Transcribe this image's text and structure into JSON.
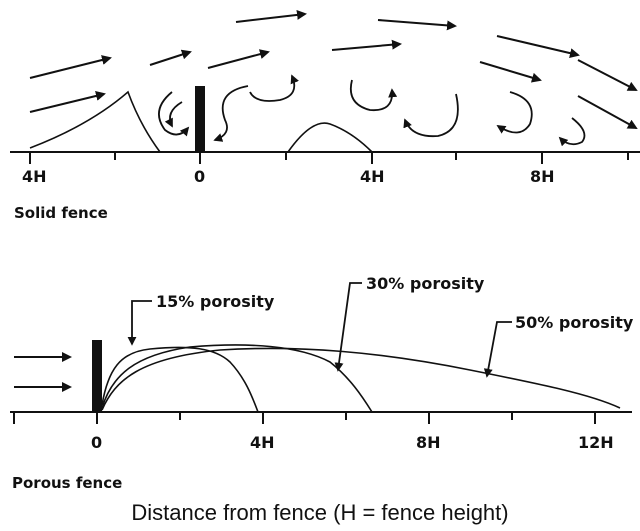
{
  "solid_panel": {
    "label": "Solid fence",
    "tick_labels": [
      "4H",
      "0",
      "4H",
      "8H"
    ]
  },
  "porous_panel": {
    "label": "Porous fence",
    "tick_labels": [
      "0",
      "4H",
      "8H",
      "12H"
    ],
    "series": [
      {
        "label": "15% porosity"
      },
      {
        "label": "30% porosity"
      },
      {
        "label": "50% porosity"
      }
    ]
  },
  "caption": "Distance from fence (H = fence height)",
  "colors": {
    "ink": "#111111",
    "background": "#ffffff"
  },
  "icons": {
    "wind_arrow": "arrow-icon",
    "eddy": "curved-arrow-icon",
    "fence": "fence-bar"
  }
}
